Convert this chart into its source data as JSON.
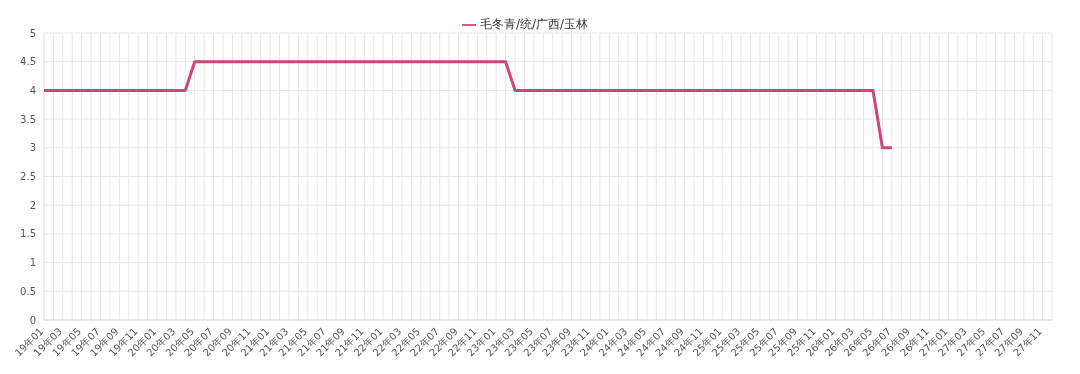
{
  "chart_data": {
    "type": "line",
    "categories": [
      "19年01",
      null,
      "19年03",
      null,
      "19年05",
      null,
      "19年07",
      null,
      "19年09",
      null,
      "19年11",
      null,
      "20年01",
      null,
      "20年03",
      null,
      "20年05",
      null,
      "20年07",
      null,
      "20年09",
      null,
      "20年11",
      null,
      "21年01",
      null,
      "21年03",
      null,
      "21年05",
      null,
      "21年07",
      null,
      "21年09",
      null,
      "21年11",
      null,
      "22年01",
      null,
      "22年03",
      null,
      "22年05",
      null,
      "22年07",
      null,
      "22年09",
      null,
      "22年11",
      null,
      "23年01",
      null,
      "23年03",
      null,
      "23年05",
      null,
      "23年07",
      null,
      "23年09",
      null,
      "23年11",
      null,
      "24年01",
      null,
      "24年03",
      null,
      "24年05",
      null,
      "24年07",
      null,
      "24年09",
      null,
      "24年11",
      null,
      "25年01",
      null,
      "25年03",
      null,
      "25年05",
      null,
      "25年07",
      null,
      "25年09",
      null,
      "25年11",
      null,
      "26年01",
      null,
      "26年03",
      null,
      "26年05",
      null,
      "26年07",
      null,
      "26年09",
      null,
      "26年11",
      null,
      "27年01",
      null,
      "27年03",
      null,
      "27年05",
      null,
      "27年07",
      null,
      "27年09",
      null,
      "27年11",
      null
    ],
    "series": [
      {
        "name": "毛冬青/统/广西/玉林",
        "color": "#c9477a",
        "values": [
          4,
          4,
          4,
          4,
          4,
          4,
          4,
          4,
          4,
          4,
          4,
          4,
          4,
          4,
          4,
          4,
          4.5,
          4.5,
          4.5,
          4.5,
          4.5,
          4.5,
          4.5,
          4.5,
          4.5,
          4.5,
          4.5,
          4.5,
          4.5,
          4.5,
          4.5,
          4.5,
          4.5,
          4.5,
          4.5,
          4.5,
          4.5,
          4.5,
          4.5,
          4.5,
          4.5,
          4.5,
          4.5,
          4.5,
          4.5,
          4.5,
          4.5,
          4.5,
          4.5,
          4.5,
          4,
          4,
          4,
          4,
          4,
          4,
          4,
          4,
          4,
          4,
          4,
          4,
          4,
          4,
          4,
          4,
          4,
          4,
          4,
          4,
          4,
          4,
          4,
          4,
          4,
          4,
          4,
          4,
          4,
          4,
          4,
          4,
          4,
          4,
          4,
          4,
          4,
          4,
          4,
          3,
          3,
          null,
          null,
          null,
          null,
          null,
          null,
          null,
          null,
          null,
          null,
          null,
          null,
          null,
          null,
          null,
          null,
          null
        ]
      }
    ],
    "ylim": [
      0,
      5
    ],
    "yticks": [
      0,
      0.5,
      1,
      1.5,
      2,
      2.5,
      3,
      3.5,
      4,
      4.5,
      5
    ],
    "grid": true,
    "legend": "top",
    "marker": "none",
    "line_style": "solid"
  }
}
